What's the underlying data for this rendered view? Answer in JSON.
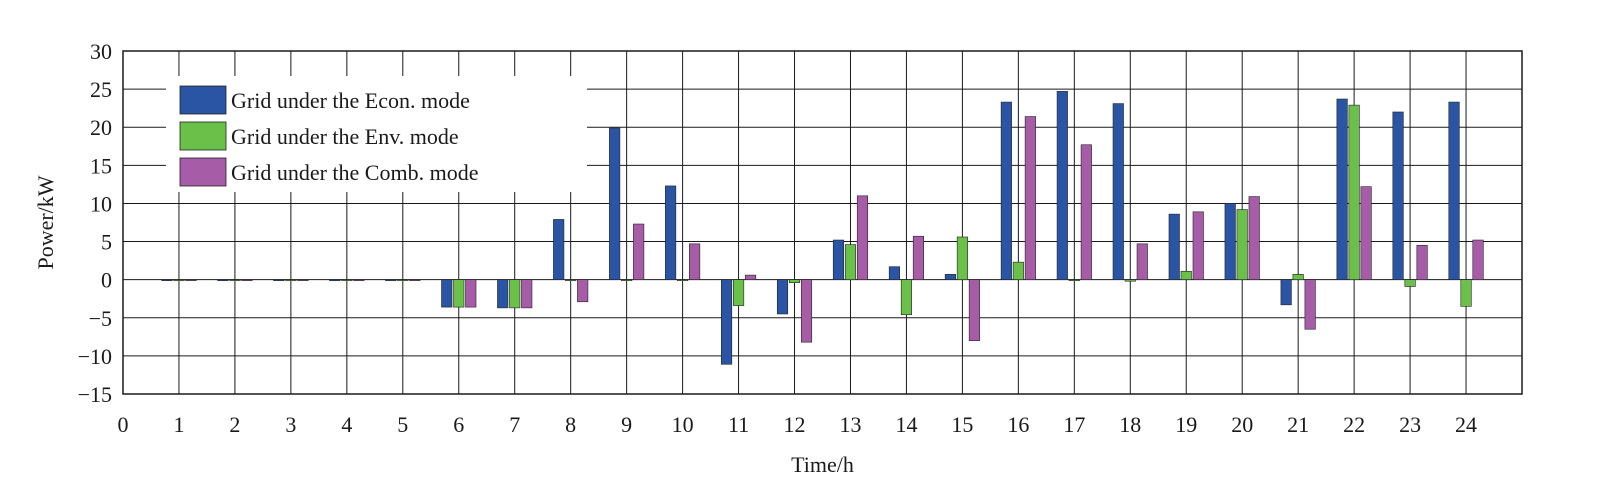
{
  "chart_data": {
    "type": "bar",
    "xlabel": "Time/h",
    "ylabel": "Power/kW",
    "xlim": [
      0,
      25
    ],
    "ylim": [
      -15,
      30
    ],
    "x_ticks": [
      "0",
      "1",
      "2",
      "3",
      "4",
      "5",
      "6",
      "7",
      "8",
      "9",
      "10",
      "11",
      "12",
      "13",
      "14",
      "15",
      "16",
      "17",
      "18",
      "19",
      "20",
      "21",
      "22",
      "23",
      "24"
    ],
    "y_ticks": [
      "30",
      "25",
      "20",
      "15",
      "10",
      "5",
      "0",
      "−5",
      "−10",
      "−15"
    ],
    "y_tick_values": [
      30,
      25,
      20,
      15,
      10,
      5,
      0,
      -5,
      -10,
      -15
    ],
    "grid": true,
    "legend_position": "top-left",
    "categories": [
      "1",
      "2",
      "3",
      "4",
      "5",
      "6",
      "7",
      "8",
      "9",
      "10",
      "11",
      "12",
      "13",
      "14",
      "15",
      "16",
      "17",
      "18",
      "19",
      "20",
      "21",
      "22",
      "23",
      "24"
    ],
    "series": [
      {
        "name": "Grid under the Econ. mode",
        "color": "#2a55a5",
        "values": [
          0,
          0,
          0,
          0,
          0,
          -3.6,
          -3.7,
          7.9,
          19.9,
          12.3,
          -11.1,
          -4.5,
          5.2,
          1.7,
          0.7,
          23.3,
          24.7,
          23.1,
          8.6,
          10.0,
          -3.3,
          23.7,
          22.0,
          23.3
        ]
      },
      {
        "name": "Grid under the Env. mode",
        "color": "#6bc04a",
        "values": [
          0,
          0,
          0,
          0,
          0,
          -3.6,
          -3.7,
          0,
          0,
          0,
          -3.4,
          -0.4,
          4.6,
          -4.6,
          5.6,
          2.3,
          0,
          -0.2,
          1.1,
          9.2,
          0.7,
          22.9,
          -0.9,
          -3.5
        ]
      },
      {
        "name": "Grid under the Comb. mode",
        "color": "#a75ca8",
        "values": [
          0,
          0,
          0,
          0,
          0,
          -3.6,
          -3.7,
          -2.9,
          7.3,
          4.7,
          0.6,
          -8.2,
          11.0,
          5.7,
          -8.0,
          21.4,
          17.7,
          4.7,
          8.9,
          10.9,
          -6.5,
          12.2,
          4.5,
          5.2
        ]
      }
    ]
  }
}
